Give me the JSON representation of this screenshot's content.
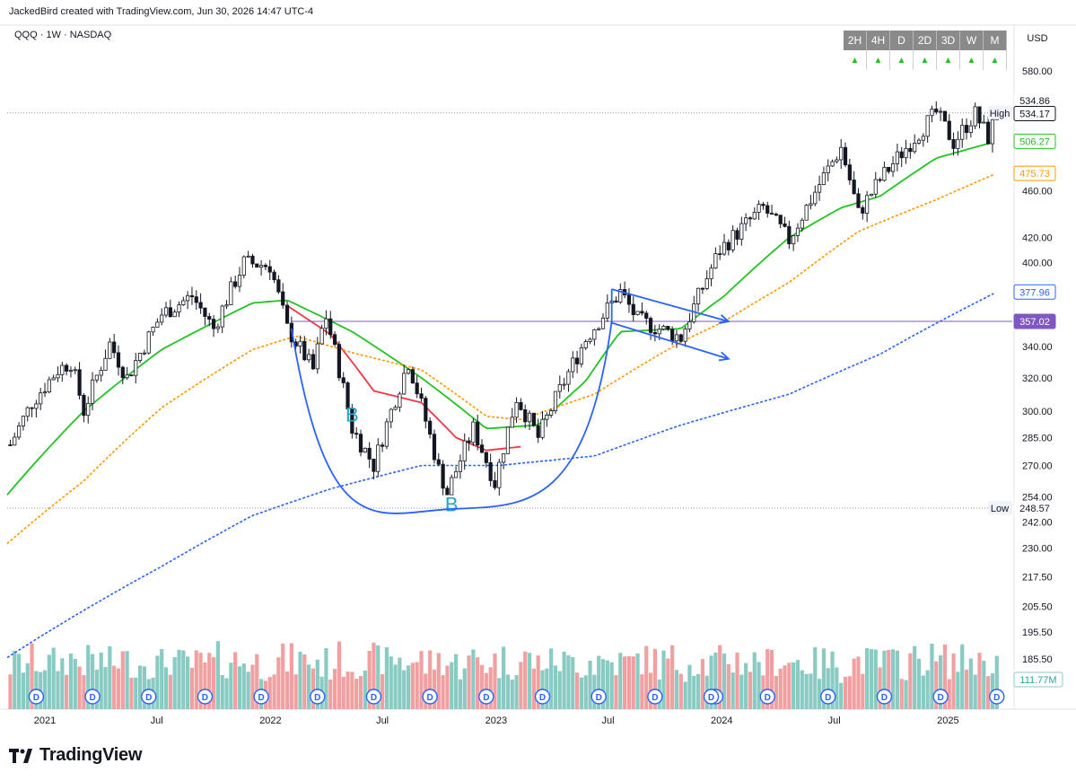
{
  "header": {
    "text": "JackedBird created with TradingView.com, Jun 30, 2026 14:47 UTC-4"
  },
  "symbol": {
    "text": "QQQ · 1W · NASDAQ"
  },
  "currency": "USD",
  "timeframes": {
    "labels": [
      "2H",
      "4H",
      "D",
      "2D",
      "3D",
      "W",
      "M"
    ],
    "signals": [
      "up",
      "up",
      "up",
      "up",
      "up",
      "up",
      "up"
    ],
    "signal_color": "#22c322"
  },
  "brand": {
    "name": "TradingView"
  },
  "colors": {
    "bull": "#ffffff",
    "bear": "#131722",
    "candle_outline": "#131722",
    "ma_fast_red": "#f23645",
    "ma_green": "#22c322",
    "ma_orange": "#ff9800",
    "ma_blue": "#2962ff",
    "horizontal_line": "#7e57c2",
    "annotation_blue": "#2962ff",
    "annotation_text": "#26a3c6",
    "vol_up": "#89cbc3",
    "vol_down": "#f0a0a0",
    "dividend_marker": "#2962ff"
  },
  "chart_data": {
    "type": "candlestick",
    "ylim": [
      233,
      590
    ],
    "yscale": "log",
    "x_start": "2020-11-01",
    "x_end": "2025-04-15",
    "price_ticks": [
      580.0,
      460.0,
      420.0,
      400.0,
      340.0,
      320.0,
      300.0,
      285.0,
      270.0,
      254.0,
      242.0,
      230.0,
      217.5,
      205.5,
      195.5,
      185.5
    ],
    "price_tick_labels": [
      "580.00",
      "460.00",
      "420.00",
      "400.00",
      "340.00",
      "320.00",
      "300.00",
      "285.00",
      "270.00",
      "254.00",
      "242.00",
      "230.00",
      "217.50",
      "205.50",
      "195.50",
      "185.50"
    ],
    "x_ticks": [
      {
        "date": "2021-01-01",
        "label": "2021"
      },
      {
        "date": "2021-07-01",
        "label": "Jul"
      },
      {
        "date": "2022-01-01",
        "label": "2022"
      },
      {
        "date": "2022-07-01",
        "label": "Jul"
      },
      {
        "date": "2023-01-01",
        "label": "2023"
      },
      {
        "date": "2023-07-01",
        "label": "Jul"
      },
      {
        "date": "2024-01-01",
        "label": "2024"
      },
      {
        "date": "2024-07-01",
        "label": "Jul"
      },
      {
        "date": "2025-01-01",
        "label": "2025"
      }
    ],
    "price_path": [
      [
        "2020-11-06",
        281
      ],
      [
        "2020-12-11",
        305
      ],
      [
        "2021-01-22",
        325
      ],
      [
        "2021-02-12",
        330
      ],
      [
        "2021-03-05",
        300
      ],
      [
        "2021-04-16",
        342
      ],
      [
        "2021-05-14",
        320
      ],
      [
        "2021-07-09",
        362
      ],
      [
        "2021-08-27",
        375
      ],
      [
        "2021-10-01",
        352
      ],
      [
        "2021-11-19",
        400
      ],
      [
        "2021-12-31",
        398
      ],
      [
        "2022-01-28",
        352
      ],
      [
        "2022-03-11",
        325
      ],
      [
        "2022-03-31",
        362
      ],
      [
        "2022-05-13",
        290
      ],
      [
        "2022-06-17",
        270
      ],
      [
        "2022-08-12",
        330
      ],
      [
        "2022-09-30",
        268
      ],
      [
        "2022-10-14",
        256
      ],
      [
        "2022-11-25",
        290
      ],
      [
        "2022-12-30",
        261
      ],
      [
        "2023-02-03",
        308
      ],
      [
        "2023-03-10",
        285
      ],
      [
        "2023-05-26",
        345
      ],
      [
        "2023-07-21",
        378
      ],
      [
        "2023-08-18",
        358
      ],
      [
        "2023-10-27",
        346
      ],
      [
        "2023-12-29",
        410
      ],
      [
        "2024-03-08",
        445
      ],
      [
        "2024-04-19",
        418
      ],
      [
        "2024-07-12",
        500
      ],
      [
        "2024-08-09",
        440
      ],
      [
        "2024-09-13",
        470
      ],
      [
        "2024-12-13",
        535
      ],
      [
        "2025-01-10",
        505
      ],
      [
        "2025-02-14",
        534
      ],
      [
        "2025-03-07",
        510
      ],
      [
        "2025-03-21",
        534.17
      ]
    ],
    "series": [
      {
        "name": "EMA fast",
        "color": "#f23645",
        "start": "2022-01-28",
        "end": "2023-02-10",
        "path": [
          [
            "2022-01-28",
            368
          ],
          [
            "2022-04-08",
            348
          ],
          [
            "2022-06-17",
            312
          ],
          [
            "2022-09-02",
            305
          ],
          [
            "2022-10-28",
            285
          ],
          [
            "2022-12-16",
            278
          ],
          [
            "2023-02-10",
            280
          ]
        ]
      },
      {
        "name": "EMA green",
        "color": "#22c322",
        "start": "2020-11-01",
        "end": "2025-03-21",
        "path": [
          [
            "2020-11-01",
            255
          ],
          [
            "2021-03-05",
            300
          ],
          [
            "2021-07-09",
            338
          ],
          [
            "2021-12-03",
            370
          ],
          [
            "2022-01-28",
            372
          ],
          [
            "2022-05-13",
            350
          ],
          [
            "2022-09-02",
            320
          ],
          [
            "2022-12-16",
            290
          ],
          [
            "2023-03-10",
            292
          ],
          [
            "2023-05-26",
            318
          ],
          [
            "2023-07-21",
            350
          ],
          [
            "2023-10-27",
            352
          ],
          [
            "2024-01-05",
            375
          ],
          [
            "2024-04-19",
            420
          ],
          [
            "2024-07-12",
            445
          ],
          [
            "2024-09-13",
            455
          ],
          [
            "2024-12-13",
            490
          ],
          [
            "2025-03-21",
            506.27
          ]
        ]
      },
      {
        "name": "EMA orange",
        "color": "#ff9800",
        "start": "2020-11-01",
        "end": "2025-03-21",
        "path": [
          [
            "2020-11-01",
            232
          ],
          [
            "2021-03-05",
            262
          ],
          [
            "2021-07-09",
            302
          ],
          [
            "2021-12-03",
            338
          ],
          [
            "2022-02-11",
            347
          ],
          [
            "2022-05-13",
            336
          ],
          [
            "2022-09-02",
            325
          ],
          [
            "2022-12-16",
            297
          ],
          [
            "2023-02-10",
            295
          ],
          [
            "2023-06-09",
            310
          ],
          [
            "2023-10-27",
            343
          ],
          [
            "2024-01-05",
            357
          ],
          [
            "2024-04-19",
            385
          ],
          [
            "2024-08-09",
            425
          ],
          [
            "2024-12-13",
            452
          ],
          [
            "2025-03-21",
            475.73
          ]
        ]
      },
      {
        "name": "SMA blue",
        "color": "#2962ff",
        "start": "2020-11-01",
        "end": "2025-03-21",
        "path": [
          [
            "2020-11-01",
            186
          ],
          [
            "2021-07-09",
            222
          ],
          [
            "2021-12-03",
            245
          ],
          [
            "2022-04-08",
            258
          ],
          [
            "2022-09-02",
            270
          ],
          [
            "2023-01-06",
            270
          ],
          [
            "2023-06-09",
            275
          ],
          [
            "2023-10-27",
            292
          ],
          [
            "2024-04-19",
            310
          ],
          [
            "2024-09-13",
            335
          ],
          [
            "2025-03-21",
            377.96
          ]
        ]
      }
    ],
    "price_labels": [
      {
        "text": "High",
        "type": "tag"
      },
      {
        "text": "534.86",
        "value": 534.86,
        "style": "plain"
      },
      {
        "text": "534.17",
        "value": 534.17,
        "style": "box-dark"
      },
      {
        "text": "506.27",
        "value": 506.27,
        "style": "green"
      },
      {
        "text": "475.73",
        "value": 475.73,
        "style": "orange"
      },
      {
        "text": "377.96",
        "value": 377.96,
        "style": "blue"
      },
      {
        "text": "357.02",
        "value": 357.02,
        "style": "purple"
      },
      {
        "text": "Low",
        "type": "tag"
      },
      {
        "text": "248.57",
        "value": 248.57,
        "style": "plain"
      }
    ],
    "high": 534.86,
    "low": 248.57,
    "horizontal_line": 357.02,
    "annotations": [
      {
        "type": "text",
        "text": "B",
        "date": "2022-05-13",
        "value": 294
      },
      {
        "type": "text",
        "text": "B",
        "date": "2022-10-21",
        "value": 247
      },
      {
        "type": "cup_arc",
        "from_date": "2022-02-04",
        "from_value": 352,
        "bottom_date": "2022-10-14",
        "bottom_value": 248,
        "to_date": "2023-07-07",
        "to_value": 357
      },
      {
        "type": "arrow",
        "from_date": "2023-07-07",
        "from_value": 380,
        "to_date": "2024-01-12",
        "to_value": 357
      },
      {
        "type": "arrow",
        "from_date": "2023-07-07",
        "from_value": 356,
        "to_date": "2024-01-12",
        "to_value": 332
      }
    ],
    "volume": {
      "last_value_label": "111.77M",
      "max": 100
    },
    "dividend_marker": {
      "text": "D"
    },
    "dividend_dates": [
      "2020-12-18",
      "2021-03-19",
      "2021-06-18",
      "2021-09-17",
      "2021-12-17",
      "2022-03-18",
      "2022-06-17",
      "2022-09-16",
      "2022-12-16",
      "2023-03-17",
      "2023-06-16",
      "2023-09-15",
      "2023-12-22",
      "2023-12-15",
      "2024-03-15",
      "2024-06-21",
      "2024-09-20",
      "2024-12-20",
      "2025-03-21"
    ]
  }
}
